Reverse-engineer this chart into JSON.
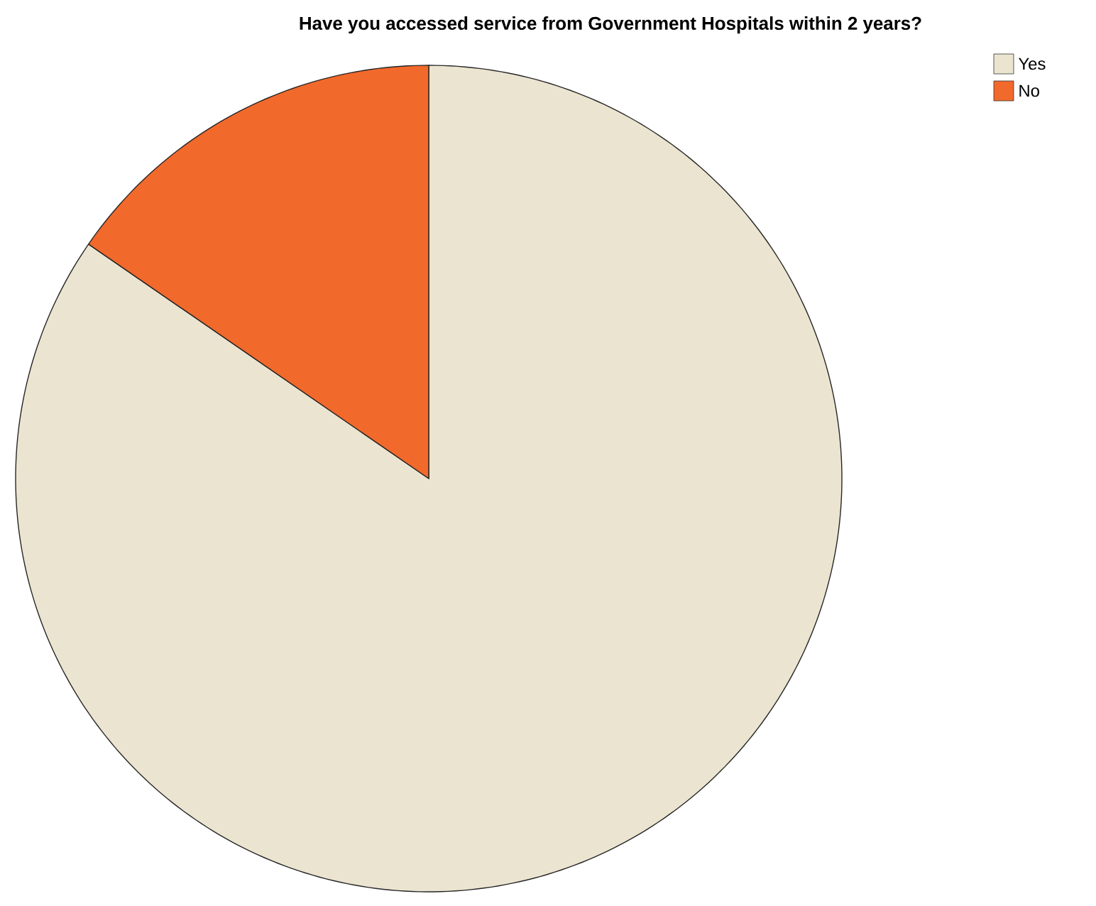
{
  "chart_data": {
    "type": "pie",
    "title": "Have you accessed service from Government Hospitals within 2 years?",
    "categories": [
      "Yes",
      "No"
    ],
    "values": [
      84.6,
      15.4
    ],
    "colors": [
      "#ebe4d0",
      "#f2692c"
    ],
    "legend": "top right"
  }
}
